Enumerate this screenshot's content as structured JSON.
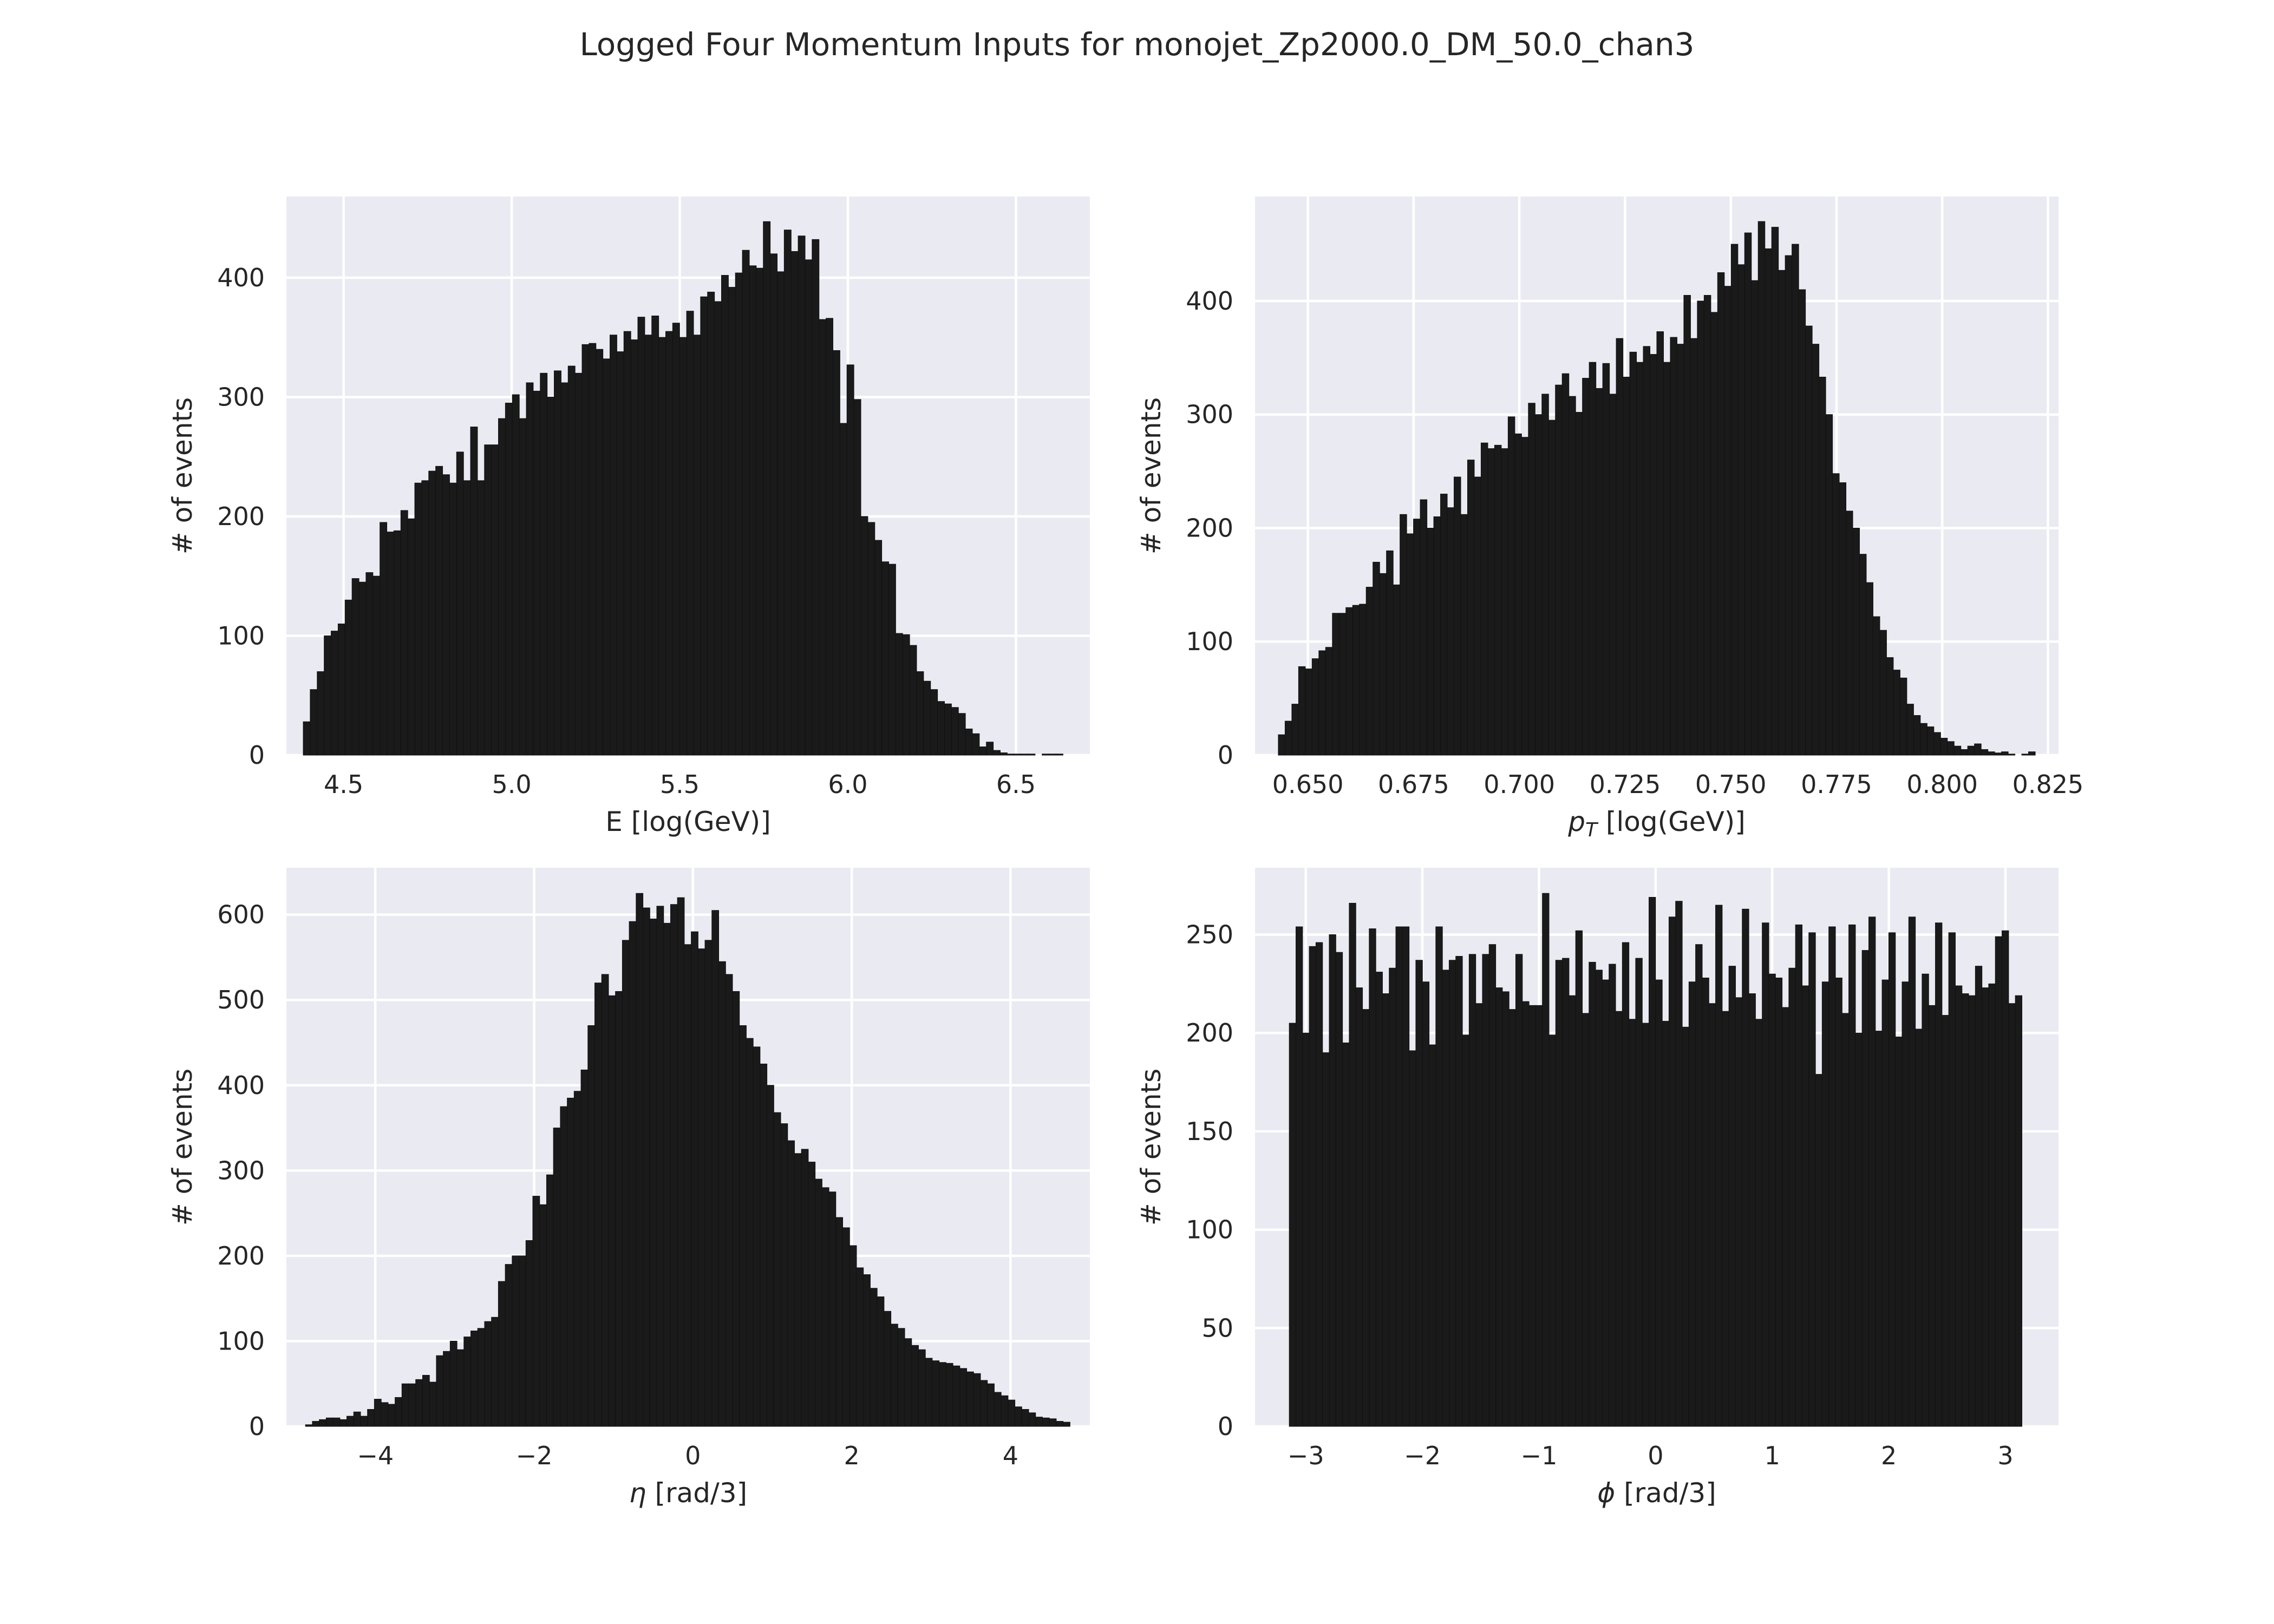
{
  "figure": {
    "title": "Logged Four Momentum Inputs for monojet_Zp2000.0_DM_50.0_chan3"
  },
  "chart_data": [
    {
      "type": "bar",
      "id": "energy",
      "xlabel": "E [log(GeV)]",
      "ylabel": "# of events",
      "xlim": [
        4.33,
        6.72
      ],
      "ylim": [
        0,
        468
      ],
      "xticks": [
        4.5,
        5.0,
        5.5,
        6.0,
        6.5
      ],
      "xtick_labels": [
        "4.5",
        "5.0",
        "5.5",
        "6.0",
        "6.5"
      ],
      "yticks": [
        0,
        100,
        200,
        300,
        400
      ],
      "ytick_labels": [
        "0",
        "100",
        "200",
        "300",
        "400"
      ],
      "bin_range": [
        4.38,
        6.64
      ],
      "values": [
        28,
        55,
        70,
        100,
        104,
        110,
        130,
        148,
        145,
        153,
        150,
        195,
        187,
        188,
        205,
        198,
        228,
        230,
        238,
        242,
        235,
        228,
        254,
        230,
        275,
        230,
        260,
        260,
        282,
        295,
        302,
        282,
        312,
        305,
        320,
        300,
        322,
        312,
        326,
        320,
        344,
        345,
        340,
        332,
        352,
        338,
        355,
        348,
        367,
        352,
        368,
        350,
        355,
        362,
        350,
        372,
        352,
        384,
        388,
        380,
        402,
        392,
        404,
        423,
        410,
        408,
        447,
        420,
        405,
        440,
        422,
        435,
        415,
        432,
        365,
        366,
        339,
        278,
        327,
        298,
        200,
        195,
        180,
        162,
        160,
        102,
        101,
        92,
        70,
        62,
        55,
        45,
        43,
        40,
        35,
        22,
        18,
        7,
        11,
        4,
        2,
        1,
        1,
        1,
        1,
        0,
        1,
        1,
        1
      ],
      "colors": {
        "bar": "#1a1a1a",
        "panel": "#eaeaf2"
      }
    },
    {
      "type": "bar",
      "id": "pt",
      "xlabel": "p_T [log(GeV)]",
      "ylabel": "# of events",
      "xlim": [
        0.6375,
        0.8275
      ],
      "ylim": [
        0,
        492
      ],
      "xticks": [
        0.65,
        0.675,
        0.7,
        0.725,
        0.75,
        0.775,
        0.8,
        0.825
      ],
      "xtick_labels": [
        "0.650",
        "0.675",
        "0.700",
        "0.725",
        "0.750",
        "0.775",
        "0.800",
        "0.825"
      ],
      "yticks": [
        0,
        100,
        200,
        300,
        400
      ],
      "ytick_labels": [
        "0",
        "100",
        "200",
        "300",
        "400"
      ],
      "bin_range": [
        0.643,
        0.822
      ],
      "values": [
        18,
        30,
        45,
        78,
        76,
        85,
        92,
        95,
        125,
        125,
        130,
        132,
        133,
        148,
        170,
        160,
        180,
        150,
        212,
        195,
        208,
        225,
        200,
        210,
        230,
        218,
        245,
        212,
        260,
        245,
        275,
        270,
        273,
        270,
        298,
        283,
        280,
        310,
        300,
        318,
        295,
        326,
        336,
        316,
        302,
        332,
        346,
        323,
        345,
        318,
        367,
        333,
        355,
        346,
        360,
        353,
        373,
        346,
        368,
        362,
        405,
        367,
        400,
        405,
        390,
        425,
        413,
        450,
        432,
        460,
        418,
        470,
        446,
        465,
        427,
        440,
        450,
        410,
        378,
        362,
        333,
        300,
        248,
        240,
        215,
        200,
        177,
        152,
        122,
        110,
        86,
        75,
        68,
        45,
        35,
        28,
        25,
        20,
        15,
        12,
        8,
        5,
        8,
        10,
        5,
        3,
        2,
        3,
        1,
        0,
        1,
        3
      ],
      "colors": {
        "bar": "#1a1a1a",
        "panel": "#eaeaf2"
      }
    },
    {
      "type": "bar",
      "id": "eta",
      "xlabel": "η [rad/3]",
      "ylabel": "# of events",
      "xlim": [
        -5.12,
        5.0
      ],
      "ylim": [
        0,
        655
      ],
      "xticks": [
        -4,
        -2,
        0,
        2,
        4
      ],
      "xtick_labels": [
        "−4",
        "−2",
        "0",
        "2",
        "4"
      ],
      "yticks": [
        0,
        100,
        200,
        300,
        400,
        500,
        600
      ],
      "ytick_labels": [
        "0",
        "100",
        "200",
        "300",
        "400",
        "500",
        "600"
      ],
      "bin_range": [
        -4.88,
        4.75
      ],
      "values": [
        2,
        6,
        8,
        10,
        10,
        8,
        12,
        17,
        12,
        20,
        32,
        28,
        26,
        34,
        50,
        50,
        55,
        60,
        52,
        83,
        88,
        100,
        90,
        105,
        112,
        115,
        123,
        128,
        170,
        190,
        200,
        200,
        218,
        270,
        260,
        295,
        350,
        375,
        385,
        393,
        418,
        470,
        520,
        530,
        505,
        510,
        570,
        592,
        625,
        608,
        595,
        610,
        590,
        612,
        620,
        565,
        580,
        560,
        570,
        605,
        545,
        530,
        510,
        470,
        455,
        445,
        425,
        400,
        368,
        355,
        335,
        320,
        325,
        310,
        290,
        280,
        275,
        245,
        233,
        212,
        186,
        178,
        162,
        152,
        135,
        120,
        115,
        103,
        95,
        90,
        80,
        77,
        75,
        74,
        71,
        68,
        64,
        62,
        54,
        50,
        40,
        36,
        31,
        23,
        20,
        16,
        11,
        10,
        9,
        6,
        5
      ]
    },
    {
      "type": "bar",
      "id": "phi",
      "xlabel": "ϕ [rad/3]",
      "ylabel": "# of events",
      "xlim": [
        -3.435,
        3.455
      ],
      "ylim": [
        0,
        284
      ],
      "xticks": [
        -3,
        -2,
        -1,
        0,
        1,
        2,
        3
      ],
      "xtick_labels": [
        "−3",
        "−2",
        "−1",
        "0",
        "1",
        "2",
        "3"
      ],
      "yticks": [
        0,
        50,
        100,
        150,
        200,
        250
      ],
      "ytick_labels": [
        "0",
        "50",
        "100",
        "150",
        "200",
        "250"
      ],
      "bin_range": [
        -3.14159,
        3.14159
      ],
      "values": [
        205,
        254,
        200,
        244,
        246,
        190,
        250,
        241,
        195,
        266,
        223,
        212,
        253,
        231,
        220,
        233,
        254,
        254,
        191,
        237,
        226,
        194,
        254,
        232,
        237,
        239,
        199,
        240,
        215,
        240,
        245,
        223,
        221,
        212,
        240,
        216,
        214,
        214,
        271,
        199,
        237,
        238,
        219,
        252,
        210,
        236,
        232,
        227,
        235,
        211,
        246,
        207,
        238,
        205,
        269,
        227,
        206,
        259,
        267,
        203,
        226,
        245,
        228,
        215,
        265,
        211,
        234,
        218,
        263,
        220,
        207,
        256,
        230,
        228,
        213,
        233,
        255,
        224,
        251,
        179,
        226,
        254,
        228,
        210,
        255,
        200,
        242,
        259,
        201,
        227,
        251,
        198,
        226,
        259,
        202,
        230,
        214,
        256,
        209,
        251,
        224,
        220,
        219,
        234,
        223,
        225,
        249,
        252,
        215,
        219
      ]
    }
  ]
}
